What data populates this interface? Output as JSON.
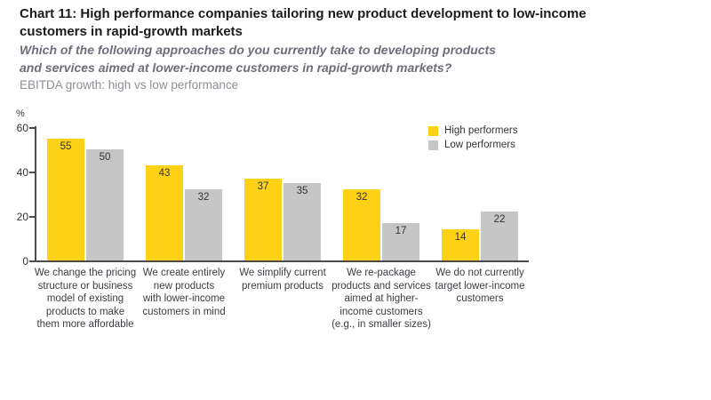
{
  "header": {
    "title_lines": [
      "Chart 11: High performance companies tailoring new product development to low-income",
      "customers in rapid-growth markets"
    ],
    "question_lines": [
      "Which of the following approaches do you currently take to developing products",
      "and services aimed at lower-income customers in rapid-growth markets?"
    ],
    "note": "EBITDA growth: high vs low performance"
  },
  "chart_data": {
    "type": "bar",
    "title": "Chart 11: High performance companies tailoring new product development to low-income customers in rapid-growth markets",
    "subtitle": "Which of the following approaches do you currently take to developing products and services aimed at lower-income customers in rapid-growth markets?",
    "note": "EBITDA growth: high vs low performance",
    "ylabel": "%",
    "ylim": [
      0,
      60
    ],
    "yticks": [
      0,
      20,
      40,
      60
    ],
    "grid": false,
    "legend_position": "top-right",
    "categories": [
      "We change the pricing\nstructure or business\nmodel of existing\nproducts to make\nthem more affordable",
      "We create entirely\nnew products\nwith lower-income\ncustomers in mind",
      "We simplify current\npremium products",
      "We re-package\nproducts and services\naimed at higher-\nincome customers\n(e.g., in smaller sizes)",
      "We do not currently\ntarget lower-income\ncustomers"
    ],
    "series": [
      {
        "name": "High performers",
        "color": "#FCD116",
        "values": [
          55,
          43,
          37,
          32,
          14
        ]
      },
      {
        "name": "Low performers",
        "color": "#C6C6C6",
        "values": [
          50,
          32,
          35,
          17,
          22
        ]
      }
    ]
  },
  "colors": {
    "title": "#1B1B1B",
    "subtitle": "#6E6E78",
    "note": "#8E8E96",
    "axis": "#4B4B4B",
    "tick_label": "#333333",
    "high_performers": "#FCD116",
    "low_performers": "#C6C6C6"
  }
}
